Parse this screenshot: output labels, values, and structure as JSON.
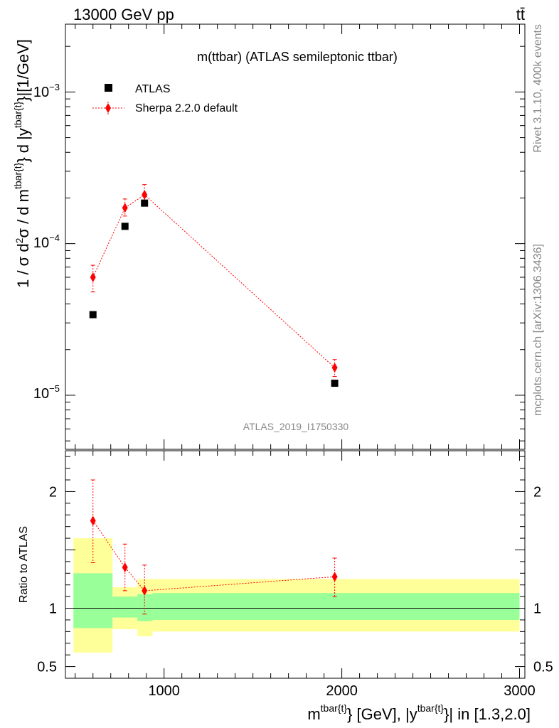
{
  "header": {
    "left": "13000 GeV pp",
    "right": "tt̄"
  },
  "side": {
    "rivet": "Rivet 3.1.10,  400k events",
    "mcplots": "mcplots.cern.ch [arXiv:1306.3436]"
  },
  "chart_data": [
    {
      "type": "scatter",
      "title": "m(ttbar) (ATLAS semileptonic ttbar)",
      "watermark": "ATLAS_2019_I1750330",
      "ylabel": "1 / σ d²σ / d m^{tbar{t}} d |y^{tbar{t}}|[1/GeV]",
      "yscale": "log",
      "ylim": [
        4.4e-06,
        0.0028
      ],
      "xlim": [
        445,
        3030
      ],
      "legend_position": "top-left",
      "legend": [
        {
          "label": "ATLAS",
          "marker": "square",
          "color": "#000000"
        },
        {
          "label": "Sherpa 2.2.0 default",
          "marker": "diamond",
          "color": "#ff0000"
        }
      ],
      "y_ticks": [
        {
          "value": 0.001,
          "label": "10^{−3}"
        },
        {
          "value": 0.0001,
          "label": "10^{−4}"
        },
        {
          "value": 1e-05,
          "label": "10^{−5}"
        }
      ],
      "series": [
        {
          "name": "ATLAS",
          "x": [
            600,
            780,
            890,
            1960
          ],
          "y": [
            3.4e-05,
            0.00013,
            0.000185,
            1.2e-05
          ]
        },
        {
          "name": "Sherpa 2.2.0 default",
          "x": [
            600,
            780,
            890,
            1960
          ],
          "y": [
            6e-05,
            0.000172,
            0.00021,
            1.52e-05
          ],
          "yerr_low": [
            4.8e-05,
            0.000152,
            0.000182,
            1.33e-05
          ],
          "yerr_high": [
            7.2e-05,
            0.000197,
            0.000245,
            1.72e-05
          ]
        }
      ]
    },
    {
      "type": "ratio",
      "ylabel": "Ratio to ATLAS",
      "xlabel": "m^{tbar{t}} [GeV], |y^{tbar{t}}| in [1.3,2.0]",
      "xlim": [
        445,
        3030
      ],
      "ylim": [
        0.4,
        2.35
      ],
      "x_ticks": [
        1000,
        2000,
        3000
      ],
      "y_ticks": [
        0.5,
        1,
        2
      ],
      "reference_line": 1,
      "bands": {
        "edges": [
          490,
          710,
          850,
          935,
          3000
        ],
        "outer_low": [
          0.62,
          0.82,
          0.76,
          0.8
        ],
        "outer_high": [
          1.6,
          1.18,
          1.25,
          1.25
        ],
        "inner_low": [
          0.83,
          0.92,
          0.89,
          0.9
        ],
        "inner_high": [
          1.3,
          1.1,
          1.12,
          1.13
        ]
      },
      "band_colors": {
        "outer": "#ffff99",
        "inner": "#99ff99"
      },
      "series": [
        {
          "name": "Sherpa 2.2.0 default",
          "x": [
            600,
            780,
            890,
            1960
          ],
          "y": [
            1.75,
            1.35,
            1.15,
            1.27
          ],
          "yerr_low": [
            1.39,
            1.15,
            0.95,
            1.1
          ],
          "yerr_high": [
            2.1,
            1.55,
            1.37,
            1.43
          ]
        }
      ]
    }
  ]
}
